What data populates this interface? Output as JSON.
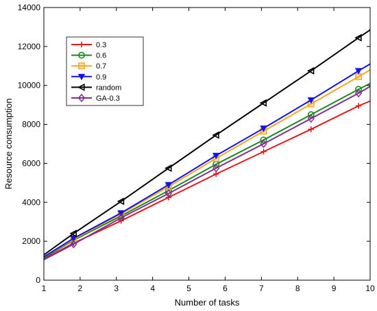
{
  "chart_data": {
    "type": "line",
    "xlabel": "Number of tasks",
    "ylabel": "Resource consumption",
    "xlim": [
      1,
      10
    ],
    "ylim": [
      0,
      14000
    ],
    "xticks": [
      "1",
      "2",
      "3",
      "4",
      "5",
      "6",
      "7",
      "8",
      "9",
      "10"
    ],
    "yticks": [
      "0",
      "2000",
      "4000",
      "6000",
      "8000",
      "10000",
      "12000",
      "14000"
    ],
    "grid": false,
    "legend_position": "top-left",
    "series": [
      {
        "name": "0.3",
        "color": "#e31a1c",
        "marker": "plus",
        "x": [
          1,
          1.82,
          3.13,
          4.44,
          5.75,
          7.06,
          8.37,
          9.68,
          10
        ],
        "y": [
          1100,
          1900,
          3050,
          4250,
          5450,
          6600,
          7750,
          8950,
          9200
        ]
      },
      {
        "name": "0.6",
        "color": "#1a8a1a",
        "marker": "circle",
        "x": [
          1,
          1.82,
          3.13,
          4.44,
          5.75,
          7.06,
          8.37,
          9.68,
          10
        ],
        "y": [
          1150,
          2050,
          3300,
          4600,
          5950,
          7200,
          8500,
          9800,
          10100
        ]
      },
      {
        "name": "0.7",
        "color": "#f5a623",
        "marker": "square",
        "x": [
          1,
          1.82,
          3.13,
          4.44,
          5.75,
          7.06,
          8.37,
          9.68,
          10
        ],
        "y": [
          1200,
          2100,
          3400,
          4800,
          6250,
          7650,
          9050,
          10450,
          10800
        ]
      },
      {
        "name": "0.9",
        "color": "#1414e6",
        "marker": "triangle-down",
        "x": [
          1,
          1.82,
          3.13,
          4.44,
          5.75,
          7.06,
          8.37,
          9.68,
          10
        ],
        "y": [
          1200,
          2150,
          3450,
          4900,
          6400,
          7800,
          9250,
          10750,
          11100
        ]
      },
      {
        "name": "random",
        "color": "#000000",
        "marker": "triangle-left",
        "x": [
          1,
          1.82,
          3.13,
          4.44,
          5.75,
          7.06,
          8.37,
          9.68,
          10
        ],
        "y": [
          1300,
          2400,
          4050,
          5750,
          7450,
          9100,
          10750,
          12450,
          12850
        ]
      },
      {
        "name": "GA-0.3",
        "color": "#7e2f8e",
        "marker": "diamond",
        "x": [
          1,
          1.82,
          3.13,
          4.44,
          5.75,
          7.06,
          8.37,
          9.68,
          10
        ],
        "y": [
          1050,
          1850,
          3200,
          4450,
          5750,
          7000,
          8300,
          9600,
          9950
        ]
      }
    ]
  }
}
